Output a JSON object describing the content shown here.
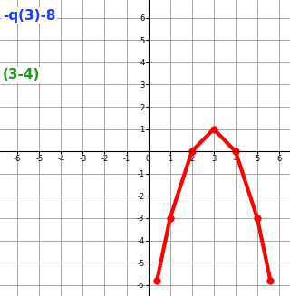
{
  "chart_data": {
    "type": "line",
    "x": [
      0.4,
      1,
      2,
      3,
      4,
      5,
      5.6
    ],
    "series": [
      {
        "color": "#ff0000",
        "values": [
          -5.8,
          -3,
          0,
          1,
          0,
          -3,
          -5.8
        ],
        "marker": "o",
        "line_style": "solid"
      }
    ],
    "xlim": [
      -6.8,
      6.5
    ],
    "ylim": [
      -6.5,
      6.8
    ],
    "xticks": [
      -6,
      -5,
      -4,
      -3,
      -2,
      -1,
      0,
      1,
      2,
      3,
      4,
      5,
      6
    ],
    "yticks": [
      -6,
      -5,
      -4,
      -3,
      -2,
      -1,
      1,
      2,
      3,
      4,
      5,
      6
    ],
    "grid": true,
    "annotations": [
      {
        "text": "-q(3)-8",
        "color": "#1a3cff"
      },
      {
        "text": "(3-4)",
        "color": "#1a9a1a"
      }
    ]
  }
}
